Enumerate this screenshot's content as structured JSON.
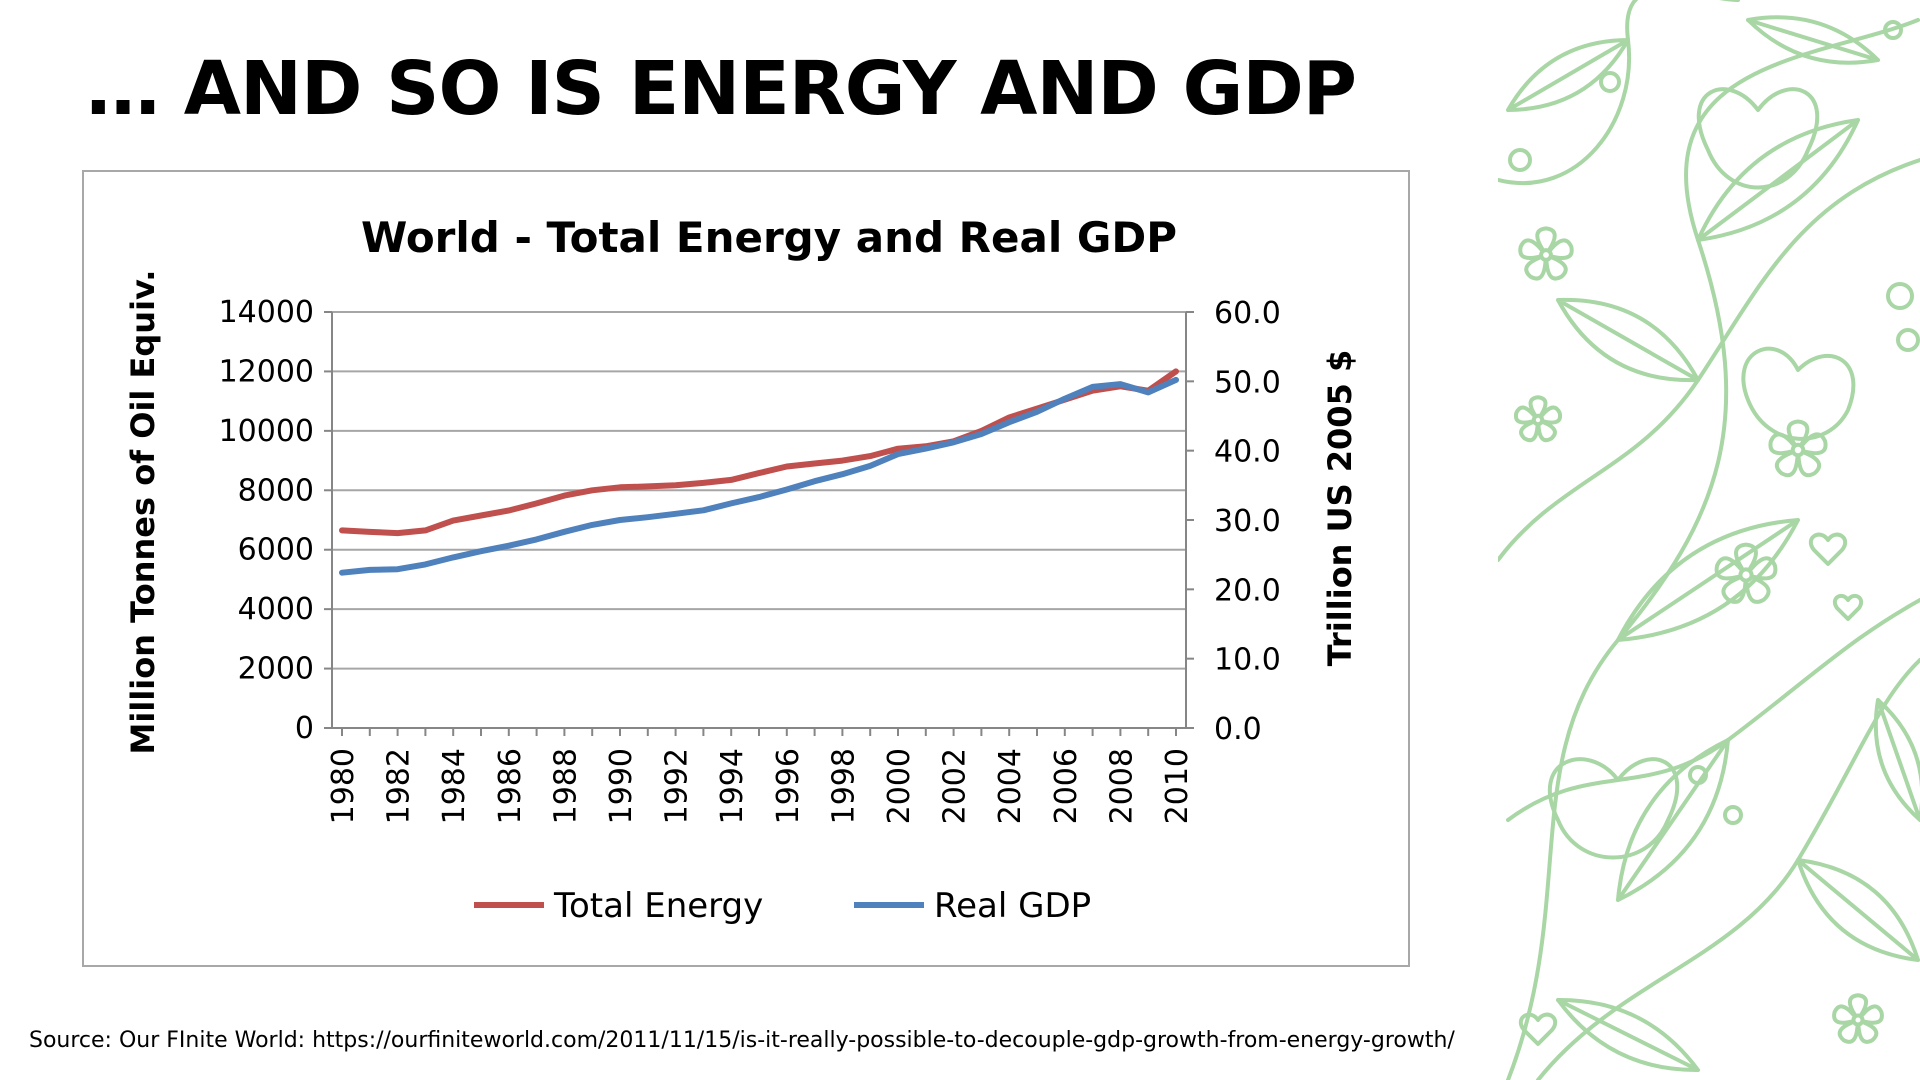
{
  "slide": {
    "title": "… AND SO IS ENERGY AND GDP",
    "source": "Source: Our FInite World: https://ourfiniteworld.com/2011/11/15/is-it-really-possible-to-decouple-gdp-growth-from-energy-growth/"
  },
  "decoration": {
    "icon": "floral-line-art-pattern",
    "color": "#a9d6a5"
  },
  "chart_data": {
    "type": "line",
    "title": "World - Total Energy and Real GDP",
    "ylabel": "Million Tonnes of Oil Equiv.",
    "y2label": "Trillion US 2005 $",
    "ylim": [
      0,
      14000
    ],
    "y2lim": [
      0,
      60
    ],
    "yticks": [
      "0",
      "2000",
      "4000",
      "6000",
      "8000",
      "10000",
      "12000",
      "14000"
    ],
    "y2ticks": [
      "0.0",
      "10.0",
      "20.0",
      "30.0",
      "40.0",
      "50.0",
      "60.0"
    ],
    "x": [
      1980,
      1981,
      1982,
      1983,
      1984,
      1985,
      1986,
      1987,
      1988,
      1989,
      1990,
      1991,
      1992,
      1993,
      1994,
      1995,
      1996,
      1997,
      1998,
      1999,
      2000,
      2001,
      2002,
      2003,
      2004,
      2005,
      2006,
      2007,
      2008,
      2009,
      2010
    ],
    "xticks": [
      "1980",
      "1982",
      "1984",
      "1986",
      "1988",
      "1990",
      "1992",
      "1994",
      "1996",
      "1998",
      "2000",
      "2002",
      "2004",
      "2006",
      "2008",
      "2010"
    ],
    "grid": true,
    "legend_position": "bottom",
    "series": [
      {
        "name": "Total Energy",
        "axis": "left",
        "color": "#c0504d",
        "values": [
          6650,
          6600,
          6560,
          6650,
          6980,
          7150,
          7320,
          7560,
          7820,
          8000,
          8100,
          8130,
          8170,
          8250,
          8350,
          8580,
          8800,
          8900,
          9000,
          9150,
          9400,
          9480,
          9650,
          10000,
          10450,
          10750,
          11050,
          11350,
          11500,
          11350,
          12000
        ]
      },
      {
        "name": "Real GDP",
        "axis": "right",
        "color": "#4f81bd",
        "values": [
          22.4,
          22.8,
          22.9,
          23.6,
          24.6,
          25.5,
          26.3,
          27.2,
          28.3,
          29.3,
          30.0,
          30.4,
          30.9,
          31.4,
          32.4,
          33.3,
          34.4,
          35.6,
          36.6,
          37.8,
          39.5,
          40.3,
          41.2,
          42.4,
          44.1,
          45.6,
          47.5,
          49.2,
          49.6,
          48.4,
          50.2
        ]
      }
    ]
  }
}
